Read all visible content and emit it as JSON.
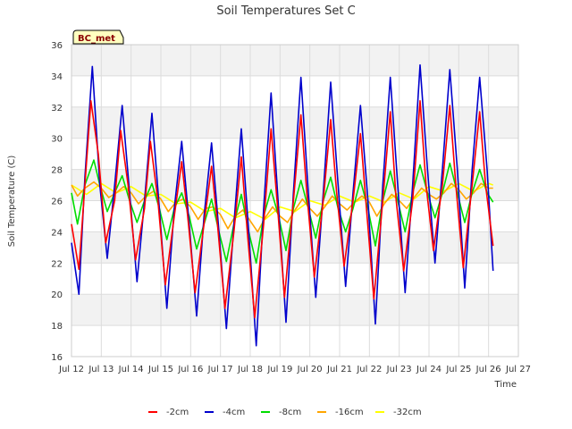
{
  "chart_data": {
    "type": "line",
    "title": "Soil Temperatures Set C",
    "xlabel": "Time",
    "ylabel": "Soil Temperature (C)",
    "badge": "BC_met",
    "xlim": [
      12,
      27
    ],
    "ylim": [
      16,
      36
    ],
    "x_ticks": [
      {
        "value": 12,
        "label": "Jul 12"
      },
      {
        "value": 13,
        "label": "Jul 13"
      },
      {
        "value": 14,
        "label": "Jul 14"
      },
      {
        "value": 15,
        "label": "Jul 15"
      },
      {
        "value": 16,
        "label": "Jul 16"
      },
      {
        "value": 17,
        "label": "Jul 17"
      },
      {
        "value": 18,
        "label": "Jul 18"
      },
      {
        "value": 19,
        "label": "Jul 19"
      },
      {
        "value": 20,
        "label": "Jul 20"
      },
      {
        "value": 21,
        "label": "Jul 21"
      },
      {
        "value": 22,
        "label": "Jul 22"
      },
      {
        "value": 23,
        "label": "Jul 23"
      },
      {
        "value": 24,
        "label": "Jul 24"
      },
      {
        "value": 25,
        "label": "Jul 25"
      },
      {
        "value": 26,
        "label": "Jul 26"
      },
      {
        "value": 27,
        "label": "Jul 27"
      }
    ],
    "y_ticks": [
      16,
      18,
      20,
      22,
      24,
      26,
      28,
      30,
      32,
      34,
      36
    ],
    "grid": true,
    "legend_position": "bottom",
    "series": [
      {
        "name": "-2cm",
        "color": "#ff0000",
        "x": [
          12.0,
          12.25,
          12.45,
          12.65,
          12.9,
          13.15,
          13.45,
          13.65,
          13.9,
          14.15,
          14.45,
          14.65,
          14.9,
          15.15,
          15.45,
          15.7,
          15.9,
          16.15,
          16.45,
          16.7,
          16.9,
          17.15,
          17.45,
          17.7,
          17.9,
          18.15,
          18.45,
          18.7,
          18.9,
          19.15,
          19.45,
          19.7,
          19.9,
          20.15,
          20.45,
          20.7,
          20.9,
          21.15,
          21.45,
          21.7,
          21.9,
          22.15,
          22.45,
          22.7,
          22.9,
          23.15,
          23.45,
          23.7,
          23.9,
          24.15,
          24.45,
          24.7,
          24.9,
          25.15,
          25.45,
          25.7,
          25.9,
          26.15
        ],
        "y": [
          24.5,
          21.6,
          27,
          32.4,
          29,
          23.3,
          26,
          30.5,
          27,
          22.2,
          25.5,
          29.8,
          26,
          20.6,
          25,
          28.5,
          25,
          20.1,
          24.5,
          28.2,
          24.5,
          19.1,
          24,
          28.8,
          24,
          18.5,
          24.5,
          30.6,
          26,
          19.8,
          26,
          31.5,
          26.5,
          21.1,
          26,
          31.2,
          26.5,
          21.8,
          26,
          30.3,
          25.5,
          19.7,
          26,
          31.7,
          26,
          21.5,
          26,
          32.4,
          27,
          22.8,
          27,
          32.1,
          27,
          21.7,
          27,
          31.7,
          27,
          23.1
        ]
      },
      {
        "name": "-4cm",
        "color": "#0000cc",
        "x": [
          12.0,
          12.25,
          12.45,
          12.7,
          12.95,
          13.2,
          13.45,
          13.7,
          13.95,
          14.2,
          14.45,
          14.7,
          14.95,
          15.2,
          15.45,
          15.7,
          15.95,
          16.2,
          16.45,
          16.7,
          16.95,
          17.2,
          17.45,
          17.7,
          17.95,
          18.2,
          18.45,
          18.7,
          18.95,
          19.2,
          19.45,
          19.7,
          19.95,
          20.2,
          20.45,
          20.7,
          20.95,
          21.2,
          21.45,
          21.7,
          21.95,
          22.2,
          22.45,
          22.7,
          22.95,
          23.2,
          23.45,
          23.7,
          23.95,
          24.2,
          24.45,
          24.7,
          24.95,
          25.2,
          25.45,
          25.7,
          25.95,
          26.15
        ],
        "y": [
          23.3,
          20,
          27.5,
          34.6,
          27,
          22.3,
          27,
          32.1,
          26.5,
          20.8,
          26,
          31.6,
          25.5,
          19.1,
          25.5,
          29.8,
          24.5,
          18.6,
          25,
          29.7,
          24,
          17.8,
          24.5,
          30.6,
          24,
          16.7,
          25.5,
          32.9,
          25.5,
          18.2,
          26.5,
          33.9,
          26.5,
          19.8,
          26.5,
          33.6,
          27,
          20.5,
          26.5,
          32.1,
          26,
          18.1,
          27,
          33.9,
          27,
          20.1,
          27,
          34.7,
          28,
          22,
          28,
          34.4,
          28,
          20.4,
          28,
          33.9,
          28,
          21.5
        ]
      },
      {
        "name": "-8cm",
        "color": "#00dd00",
        "x": [
          12.0,
          12.2,
          12.45,
          12.75,
          12.95,
          13.2,
          13.45,
          13.7,
          13.95,
          14.2,
          14.45,
          14.7,
          14.95,
          15.2,
          15.45,
          15.7,
          15.95,
          16.2,
          16.45,
          16.7,
          16.95,
          17.2,
          17.45,
          17.7,
          17.95,
          18.2,
          18.45,
          18.7,
          18.95,
          19.2,
          19.45,
          19.7,
          19.95,
          20.2,
          20.45,
          20.7,
          20.95,
          21.2,
          21.45,
          21.7,
          21.95,
          22.2,
          22.45,
          22.7,
          22.95,
          23.2,
          23.45,
          23.7,
          23.95,
          24.2,
          24.45,
          24.7,
          24.95,
          25.2,
          25.45,
          25.7,
          25.95,
          26.15
        ],
        "y": [
          26.5,
          24.5,
          27,
          28.6,
          27,
          25.3,
          26.5,
          27.6,
          26,
          24.6,
          26,
          27.1,
          25.5,
          23.5,
          25.5,
          26.5,
          25,
          22.9,
          24.5,
          26.1,
          24,
          22.1,
          24.5,
          26.4,
          24,
          22,
          25,
          26.7,
          25,
          22.8,
          25.5,
          27.3,
          25.5,
          23.6,
          26,
          27.5,
          25.5,
          24,
          25.5,
          27.3,
          25.5,
          23.1,
          26,
          27.9,
          26,
          24,
          26.5,
          28.3,
          26.5,
          24.9,
          26.5,
          28.4,
          26.5,
          24.6,
          26.5,
          28,
          26.5,
          25.9
        ]
      },
      {
        "name": "-16cm",
        "color": "#ffa500",
        "x": [
          12.0,
          12.2,
          12.45,
          12.75,
          13.0,
          13.25,
          13.5,
          13.75,
          14.0,
          14.25,
          14.5,
          14.75,
          15.0,
          15.25,
          15.5,
          15.75,
          16.0,
          16.25,
          16.5,
          16.75,
          17.0,
          17.25,
          17.5,
          17.75,
          18.0,
          18.25,
          18.5,
          18.75,
          19.0,
          19.25,
          19.5,
          19.75,
          20.0,
          20.25,
          20.5,
          20.75,
          21.0,
          21.25,
          21.5,
          21.75,
          22.0,
          22.25,
          22.5,
          22.75,
          23.0,
          23.25,
          23.5,
          23.75,
          24.0,
          24.25,
          24.5,
          24.75,
          25.0,
          25.25,
          25.5,
          25.75,
          26.0,
          26.15
        ],
        "y": [
          27,
          26.3,
          26.8,
          27.2,
          26.8,
          26.2,
          26.5,
          26.9,
          26.5,
          25.8,
          26.3,
          26.6,
          26.1,
          25.3,
          25.9,
          26.1,
          25.6,
          24.8,
          25.5,
          25.6,
          25.1,
          24.2,
          25,
          25.4,
          24.7,
          24,
          24.9,
          25.6,
          25,
          24.6,
          25.4,
          26.1,
          25.5,
          25,
          25.6,
          26.3,
          25.8,
          25.4,
          25.9,
          26.3,
          25.9,
          25,
          25.8,
          26.4,
          26,
          25.5,
          26.2,
          26.8,
          26.4,
          26.1,
          26.5,
          27.1,
          26.7,
          26.1,
          26.5,
          27.1,
          26.8,
          26.8
        ]
      },
      {
        "name": "-32cm",
        "color": "#ffff00",
        "x": [
          12.0,
          12.5,
          13.0,
          13.5,
          14.0,
          14.5,
          15.0,
          15.5,
          16.0,
          16.5,
          17.0,
          17.5,
          18.0,
          18.5,
          19.0,
          19.5,
          20.0,
          20.5,
          21.0,
          21.5,
          22.0,
          22.5,
          23.0,
          23.5,
          24.0,
          24.5,
          25.0,
          25.5,
          26.0,
          26.15
        ],
        "y": [
          27,
          26.4,
          27.1,
          26.5,
          26.9,
          26.3,
          26.4,
          25.8,
          25.9,
          25.3,
          25.5,
          24.9,
          25.3,
          24.8,
          25.6,
          25.3,
          26,
          25.7,
          26.3,
          25.9,
          26.3,
          25.9,
          26.5,
          26.1,
          26.9,
          26.6,
          27.1,
          26.6,
          27.1,
          27
        ]
      }
    ]
  }
}
